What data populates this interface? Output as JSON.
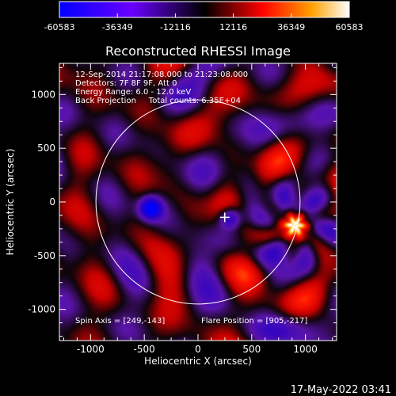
{
  "chart_data": {
    "type": "heatmap",
    "title": "Reconstructed RHESSI Image",
    "xlabel": "Heliocentric X (arcsec)",
    "ylabel": "Heliocentric Y (arcsec)",
    "xlim": [
      -1290,
      1290
    ],
    "ylim": [
      -1290,
      1290
    ],
    "xticks": [
      -1000,
      -500,
      0,
      500,
      1000
    ],
    "yticks": [
      -1000,
      -500,
      0,
      500,
      1000
    ],
    "colorbar": {
      "range": [
        -60583,
        60583
      ],
      "ticks": [
        -60583,
        -36349,
        -12116,
        12116,
        36349,
        60583
      ]
    },
    "info_lines": [
      "12-Sep-2014 21:17:08.000 to 21:23:08.000",
      "Detectors: 7F 8F 9F, Att 0",
      "Energy Range: 6.0 - 12.0 keV",
      "Back Projection     Total counts: 6.35E+04"
    ],
    "spin_axis_label": "Spin Axis = [249,-143]",
    "flare_position_label": "Flare Position = [905,-217]",
    "spin_axis": [
      249,
      -143
    ],
    "flare_position": [
      905,
      -217
    ],
    "solar_limb_radius": 950,
    "sources": [
      {
        "x": 905,
        "y": -217,
        "value": 60583
      },
      {
        "x": -440,
        "y": -60,
        "value": -60583
      },
      {
        "x": 300,
        "y": -150,
        "value": -45000
      }
    ],
    "timestamp": "17-May-2022 03:41"
  }
}
